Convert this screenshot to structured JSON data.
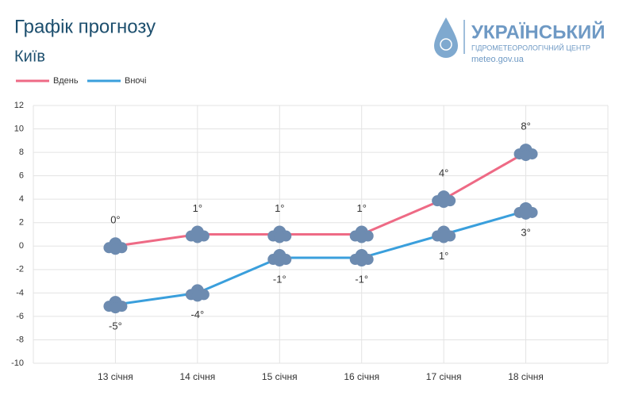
{
  "chart_data": {
    "type": "line",
    "title": "Графік прогнозу",
    "subtitle": "Київ",
    "logo": {
      "name": "УКРАЇНСЬКИЙ",
      "subname": "ГІДРОМЕТЕОРОЛОГІЧНИЙ ЦЕНТР",
      "url": "meteo.gov.ua"
    },
    "categories": [
      "13 січня",
      "14 січня",
      "15 січня",
      "16 січня",
      "17 січня",
      "18 січня"
    ],
    "series": [
      {
        "name": "Вдень",
        "color": "#ee6a85",
        "values": [
          0,
          1,
          1,
          1,
          4,
          8
        ],
        "value_labels": [
          "0°",
          "1°",
          "1°",
          "1°",
          "4°",
          "8°"
        ]
      },
      {
        "name": "Вночі",
        "color": "#3a9fdc",
        "values": [
          -5,
          -4,
          -1,
          -1,
          1,
          3
        ],
        "value_labels": [
          "-5°",
          "-4°",
          "-1°",
          "-1°",
          "1°",
          "3°"
        ]
      }
    ],
    "ylim": [
      -10,
      12
    ],
    "yticks": [
      -10,
      -8,
      -6,
      -4,
      -2,
      0,
      2,
      4,
      6,
      8,
      10,
      12
    ],
    "grid": true
  }
}
